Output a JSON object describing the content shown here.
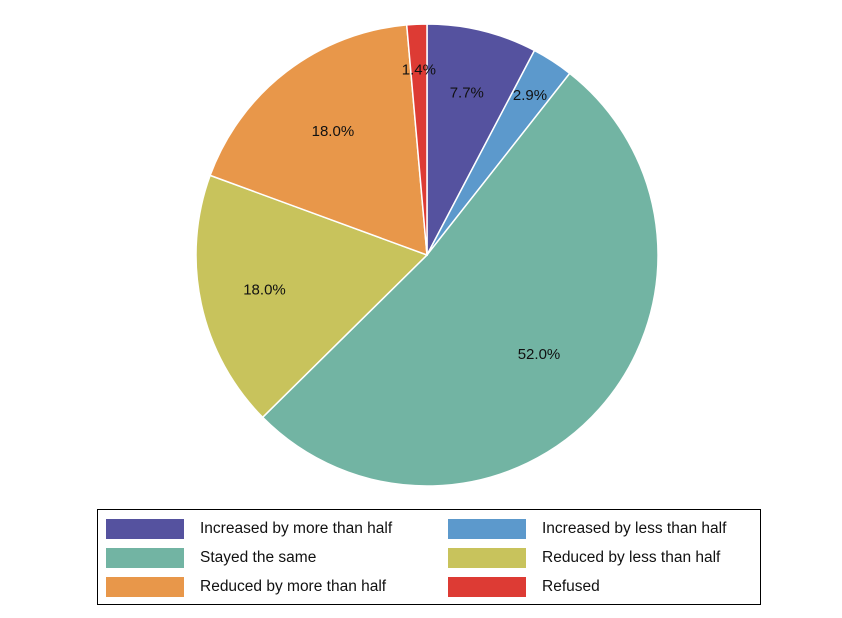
{
  "chart_data": {
    "type": "pie",
    "start": "12 o'clock",
    "direction": "clockwise",
    "labels": [
      "Increased by more than half",
      "Increased by less than half",
      "Stayed the same",
      "Reduced by less than half",
      "Reduced by more than half",
      "Refused"
    ],
    "values": [
      7.7,
      2.9,
      52.0,
      18.0,
      18.0,
      1.4
    ],
    "value_labels": [
      "7.7%",
      "2.9%",
      "52.0%",
      "18.0%",
      "18.0%",
      "1.4%"
    ],
    "colors": [
      "#55529f",
      "#5c99cc",
      "#72b4a3",
      "#c8c35c",
      "#e8974a",
      "#dd3b34"
    ],
    "legend_position": "bottom"
  }
}
